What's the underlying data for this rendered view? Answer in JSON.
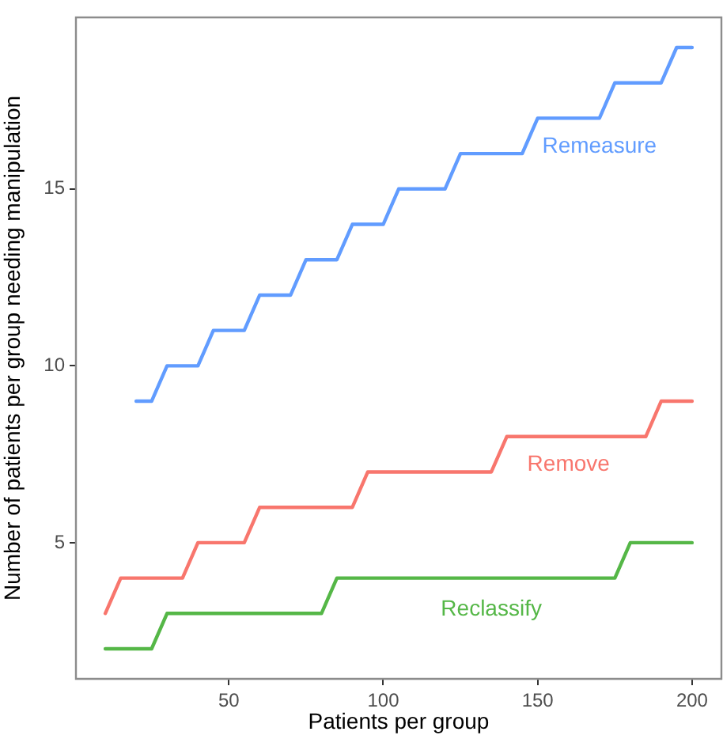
{
  "chart_data": {
    "type": "line",
    "xlabel": "Patients per group",
    "ylabel": "Number of patients per group needing manipulation",
    "x": [
      10,
      15,
      20,
      25,
      30,
      35,
      40,
      45,
      50,
      55,
      60,
      65,
      70,
      75,
      80,
      85,
      90,
      95,
      100,
      105,
      110,
      115,
      120,
      125,
      130,
      135,
      140,
      145,
      150,
      155,
      160,
      165,
      170,
      175,
      180,
      185,
      190,
      195,
      200
    ],
    "series": [
      {
        "name": "Remeasure",
        "color": "#619cff",
        "values": [
          null,
          null,
          9,
          9,
          10,
          10,
          10,
          11,
          11,
          11,
          12,
          12,
          12,
          13,
          13,
          13,
          14,
          14,
          14,
          15,
          15,
          15,
          15,
          16,
          16,
          16,
          16,
          16,
          17,
          17,
          17,
          17,
          17,
          18,
          18,
          18,
          18,
          19,
          19
        ]
      },
      {
        "name": "Remove",
        "color": "#f8766d",
        "values": [
          3,
          4,
          4,
          4,
          4,
          4,
          5,
          5,
          5,
          5,
          6,
          6,
          6,
          6,
          6,
          6,
          6,
          7,
          7,
          7,
          7,
          7,
          7,
          7,
          7,
          7,
          8,
          8,
          8,
          8,
          8,
          8,
          8,
          8,
          8,
          8,
          9,
          9,
          9
        ]
      },
      {
        "name": "Reclassify",
        "color": "#55b747",
        "values": [
          2,
          2,
          2,
          2,
          3,
          3,
          3,
          3,
          3,
          3,
          3,
          3,
          3,
          3,
          3,
          4,
          4,
          4,
          4,
          4,
          4,
          4,
          4,
          4,
          4,
          4,
          4,
          4,
          4,
          4,
          4,
          4,
          4,
          4,
          5,
          5,
          5,
          5,
          5
        ]
      }
    ],
    "xlim": [
      0.5,
      209.5
    ],
    "xticks": [
      50,
      100,
      150,
      200
    ],
    "ylim": [
      1.15,
      19.85
    ],
    "yticks": [
      5,
      10,
      15
    ],
    "grid": false,
    "legend": false,
    "marker": "none",
    "line_style": "solid"
  }
}
